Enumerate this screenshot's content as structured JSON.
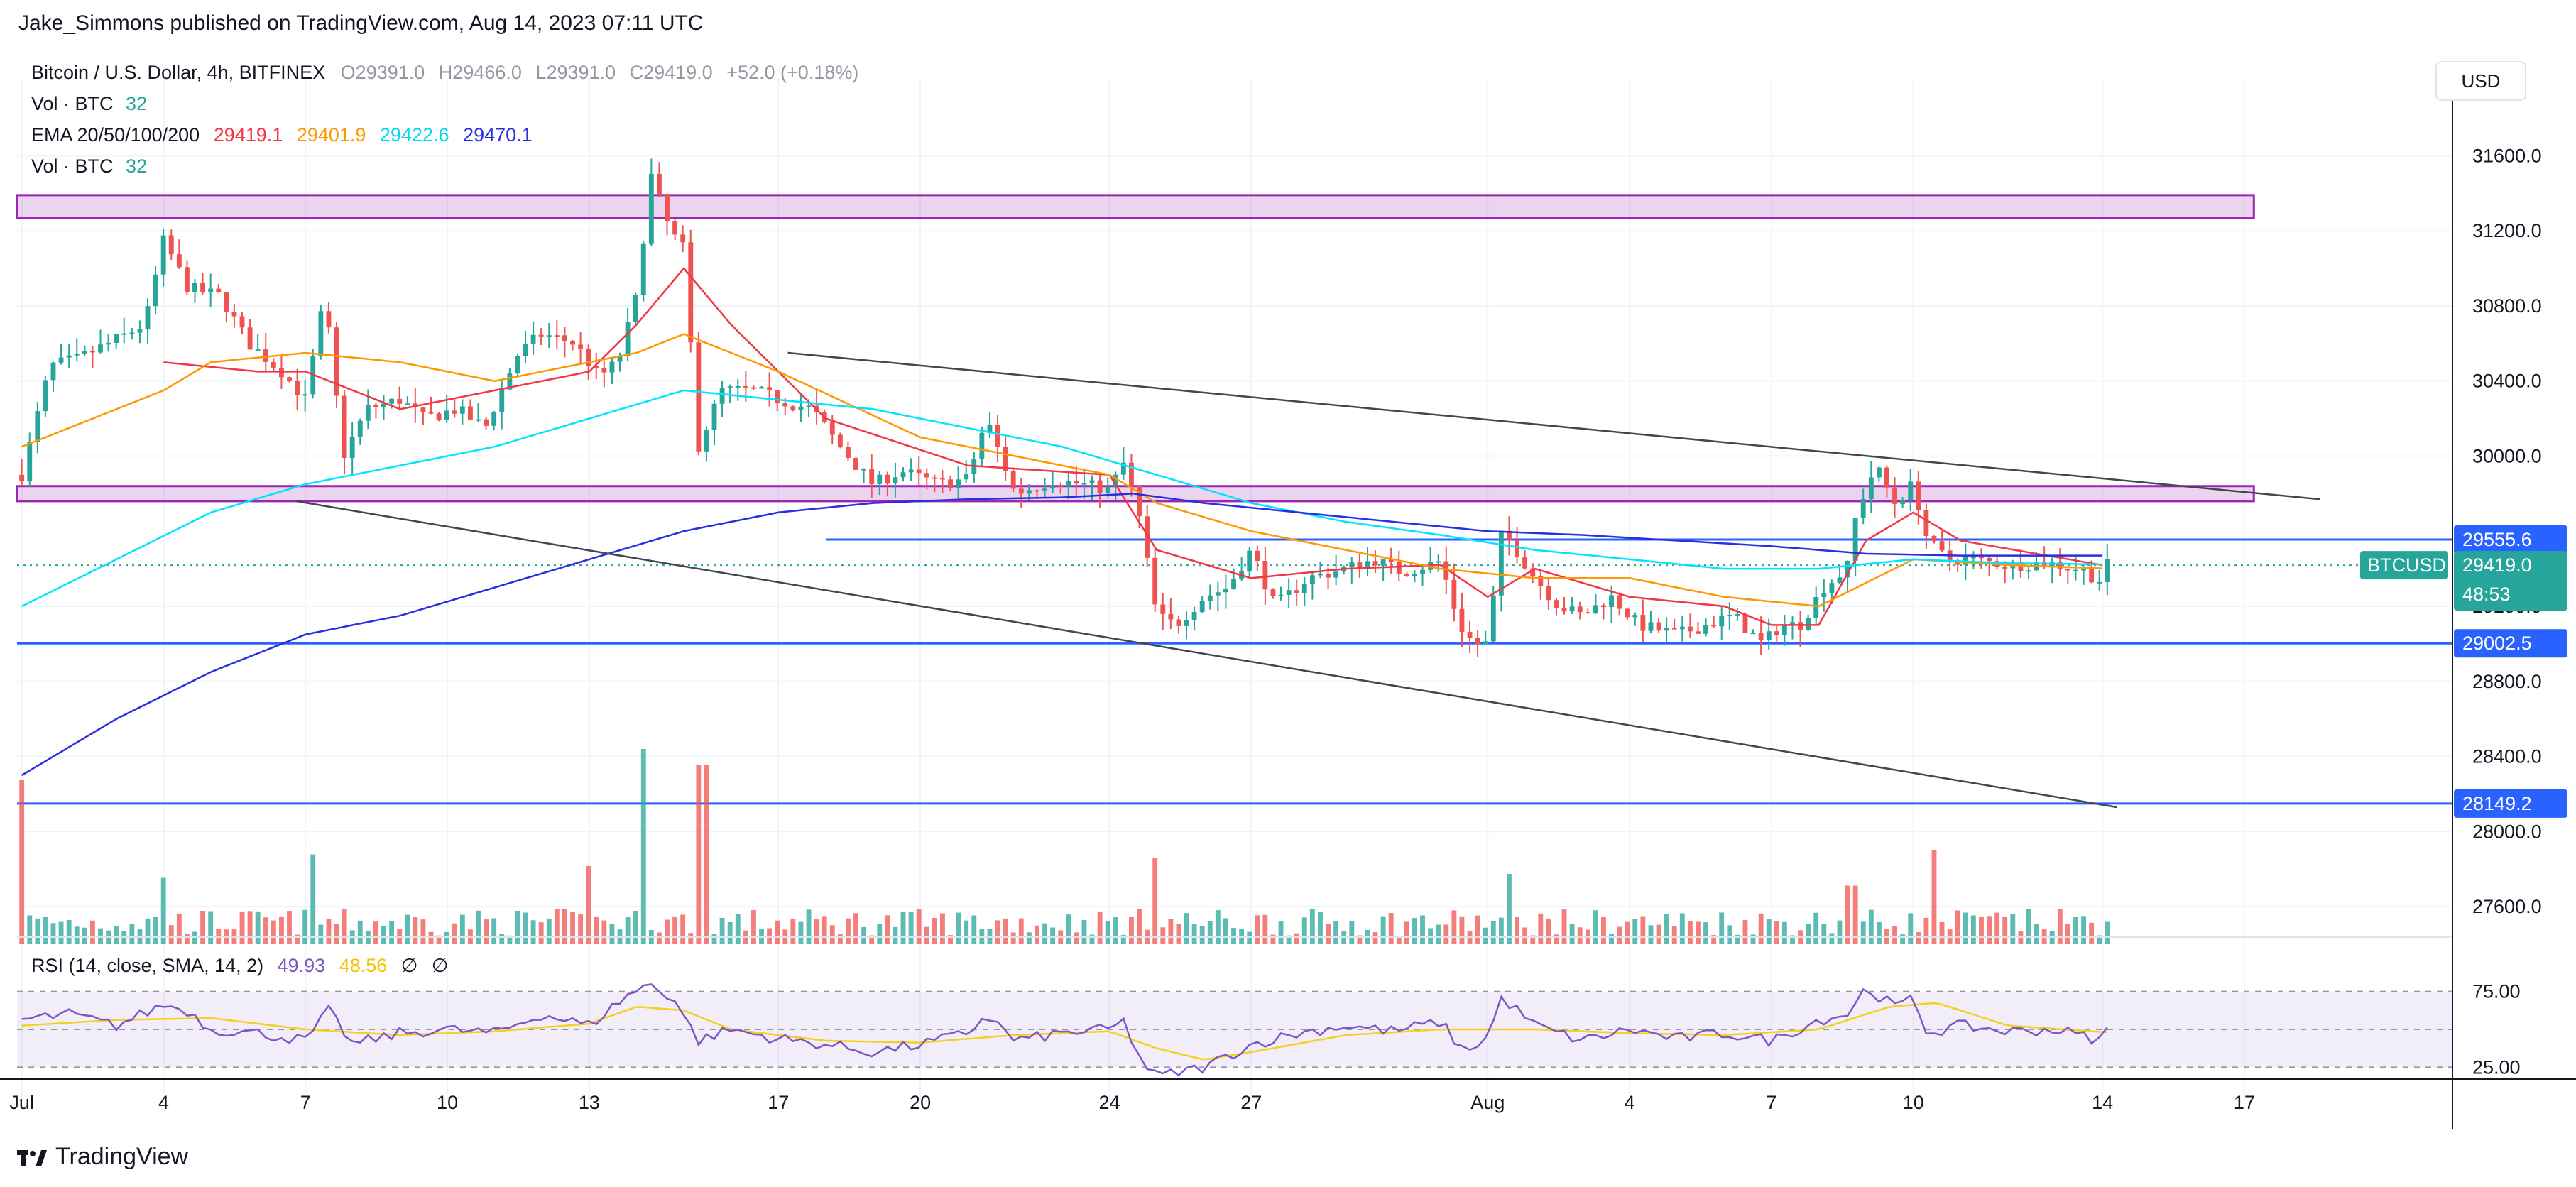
{
  "publisher": "Jake_Simmons published on TradingView.com, Aug 14, 2023 07:11 UTC",
  "brand": "TradingView",
  "currency_button": "USD",
  "legend": {
    "symbol": "Bitcoin / U.S. Dollar, 4h, BITFINEX",
    "o_label": "O",
    "o_value": "29391.0",
    "h_label": "H",
    "h_value": "29466.0",
    "l_label": "L",
    "l_value": "29391.0",
    "c_label": "C",
    "c_value": "29419.0",
    "change": "+52.0 (+0.18%)",
    "vol1_label": "Vol · BTC",
    "vol1_value": "32",
    "ema_label": "EMA 20/50/100/200",
    "ema20": "29419.1",
    "ema50": "29401.9",
    "ema100": "29422.6",
    "ema200": "29470.1",
    "vol2_label": "Vol · BTC",
    "vol2_value": "32"
  },
  "rsi_legend": {
    "label": "RSI (14, close, SMA, 14, 2)",
    "rsi": "49.93",
    "sma": "48.56",
    "sym1": "∅",
    "sym2": "∅"
  },
  "colors": {
    "up": "#26a69a",
    "down": "#ef5350",
    "ema20": "#f23645",
    "ema50": "#ff9800",
    "ema100": "#00e5ff",
    "ema200": "#2a2ee0",
    "support": "#2962ff",
    "zone": "#9c27b0",
    "rsi": "#7e57c2",
    "rsi_sma": "#f5d01e",
    "trend": "#434651"
  },
  "chart_data": {
    "type": "candlestick",
    "symbol": "BTCUSD",
    "timeframe": "4h",
    "price_axis": {
      "ylim": [
        27400,
        31900
      ],
      "ticks": [
        27600,
        28000,
        28400,
        28800,
        29200,
        30000,
        30400,
        30800,
        31200,
        31600
      ]
    },
    "price_tick_labels": [
      "27600.0",
      "28000.0",
      "28400.0",
      "28800.0",
      "29200.0",
      "30000.0",
      "30400.0",
      "30800.0",
      "31200.0",
      "31600.0"
    ],
    "time_axis": {
      "ticks": [
        {
          "label": "Jul",
          "day": 0
        },
        {
          "label": "4",
          "day": 3
        },
        {
          "label": "7",
          "day": 6
        },
        {
          "label": "10",
          "day": 9
        },
        {
          "label": "13",
          "day": 12
        },
        {
          "label": "17",
          "day": 16
        },
        {
          "label": "20",
          "day": 19
        },
        {
          "label": "24",
          "day": 23
        },
        {
          "label": "27",
          "day": 26
        },
        {
          "label": "Aug",
          "day": 31
        },
        {
          "label": "4",
          "day": 34
        },
        {
          "label": "7",
          "day": 37
        },
        {
          "label": "10",
          "day": 40
        },
        {
          "label": "14",
          "day": 44
        },
        {
          "label": "17",
          "day": 47
        }
      ],
      "xlim_days": [
        -0.1,
        51.4
      ]
    },
    "price_tags": [
      {
        "label": "29555.6",
        "price": 29555.6,
        "color": "#2962ff"
      },
      {
        "label": "29419.0",
        "sub": "48:53",
        "price": 29419.0,
        "color": "#26a69a",
        "symbol": "BTCUSD"
      },
      {
        "label": "29002.5",
        "price": 29002.5,
        "color": "#2962ff"
      },
      {
        "label": "28149.2",
        "price": 28149.2,
        "color": "#2962ff"
      }
    ],
    "horizontal_lines": [
      {
        "price": 29555.6,
        "from_day": 17,
        "to_day": 51.4
      },
      {
        "price": 29002.5,
        "from_day": -0.1,
        "to_day": 51.4
      },
      {
        "price": 28149.2,
        "from_day": -0.1,
        "to_day": 51.4
      }
    ],
    "zones": [
      {
        "top": 31390,
        "bottom": 31270,
        "from_day": -0.1,
        "to_day": 47.2
      },
      {
        "top": 29840,
        "bottom": 29760,
        "from_day": -0.1,
        "to_day": 47.2
      }
    ],
    "trendlines": [
      {
        "from": [
          16.2,
          30550
        ],
        "to": [
          48.6,
          29770
        ]
      },
      {
        "from": [
          5.8,
          29760
        ],
        "to": [
          44.3,
          28130
        ]
      }
    ],
    "close_anchors": [
      [
        0,
        29900
      ],
      [
        0.6,
        30480
      ],
      [
        1.2,
        30520
      ],
      [
        2,
        30620
      ],
      [
        2.6,
        30700
      ],
      [
        3,
        31150
      ],
      [
        3.5,
        30900
      ],
      [
        4.2,
        30850
      ],
      [
        4.8,
        30600
      ],
      [
        5.5,
        30450
      ],
      [
        6,
        30300
      ],
      [
        6.4,
        30850
      ],
      [
        6.8,
        30000
      ],
      [
        7.3,
        30250
      ],
      [
        8,
        30300
      ],
      [
        8.5,
        30200
      ],
      [
        9.2,
        30250
      ],
      [
        9.8,
        30150
      ],
      [
        10.5,
        30550
      ],
      [
        11,
        30650
      ],
      [
        11.7,
        30600
      ],
      [
        12.2,
        30420
      ],
      [
        12.6,
        30500
      ],
      [
        13,
        30850
      ],
      [
        13.3,
        31500
      ],
      [
        13.7,
        31200
      ],
      [
        14,
        31100
      ],
      [
        14.3,
        30050
      ],
      [
        14.8,
        30350
      ],
      [
        15.5,
        30350
      ],
      [
        16,
        30300
      ],
      [
        16.7,
        30250
      ],
      [
        17.3,
        30050
      ],
      [
        18,
        29850
      ],
      [
        18.6,
        29920
      ],
      [
        19.4,
        29850
      ],
      [
        20,
        29880
      ],
      [
        20.4,
        30200
      ],
      [
        21,
        29800
      ],
      [
        21.8,
        29870
      ],
      [
        22.4,
        29850
      ],
      [
        23,
        29820
      ],
      [
        23.3,
        29960
      ],
      [
        23.6,
        29710
      ],
      [
        24,
        29150
      ],
      [
        24.4,
        29100
      ],
      [
        25,
        29250
      ],
      [
        25.5,
        29300
      ],
      [
        26,
        29500
      ],
      [
        26.5,
        29200
      ],
      [
        27.2,
        29350
      ],
      [
        28,
        29400
      ],
      [
        28.6,
        29450
      ],
      [
        29.2,
        29380
      ],
      [
        30,
        29440
      ],
      [
        30.4,
        29100
      ],
      [
        30.7,
        29000
      ],
      [
        31,
        29000
      ],
      [
        31.3,
        29600
      ],
      [
        31.6,
        29500
      ],
      [
        32,
        29350
      ],
      [
        32.5,
        29200
      ],
      [
        33,
        29150
      ],
      [
        33.6,
        29250
      ],
      [
        34.2,
        29100
      ],
      [
        35,
        29050
      ],
      [
        35.6,
        29100
      ],
      [
        36.2,
        29150
      ],
      [
        36.8,
        29000
      ],
      [
        37.2,
        29100
      ],
      [
        37.6,
        29100
      ],
      [
        38.1,
        29300
      ],
      [
        38.6,
        29400
      ],
      [
        38.8,
        29700
      ],
      [
        39.2,
        29950
      ],
      [
        39.6,
        29750
      ],
      [
        40,
        29850
      ],
      [
        40.3,
        29550
      ],
      [
        40.7,
        29450
      ],
      [
        41.2,
        29450
      ],
      [
        42,
        29420
      ],
      [
        42.8,
        29430
      ],
      [
        43.5,
        29400
      ],
      [
        44,
        29330
      ],
      [
        44.1,
        29419
      ]
    ],
    "ema_anchors": {
      "ema20": [
        [
          3,
          30500
        ],
        [
          5,
          30450
        ],
        [
          6,
          30450
        ],
        [
          8,
          30250
        ],
        [
          10,
          30350
        ],
        [
          12,
          30450
        ],
        [
          13,
          30700
        ],
        [
          14,
          31000
        ],
        [
          15,
          30700
        ],
        [
          17,
          30200
        ],
        [
          20,
          29950
        ],
        [
          23,
          29900
        ],
        [
          24,
          29500
        ],
        [
          26,
          29350
        ],
        [
          28,
          29400
        ],
        [
          30,
          29420
        ],
        [
          31,
          29250
        ],
        [
          32,
          29400
        ],
        [
          34,
          29250
        ],
        [
          36,
          29200
        ],
        [
          37,
          29100
        ],
        [
          38,
          29100
        ],
        [
          39,
          29550
        ],
        [
          40,
          29700
        ],
        [
          41,
          29550
        ],
        [
          44,
          29419
        ]
      ],
      "ema50": [
        [
          0,
          30050
        ],
        [
          3,
          30350
        ],
        [
          4,
          30500
        ],
        [
          6,
          30550
        ],
        [
          8,
          30500
        ],
        [
          10,
          30400
        ],
        [
          12,
          30500
        ],
        [
          13,
          30550
        ],
        [
          14,
          30650
        ],
        [
          16,
          30450
        ],
        [
          19,
          30100
        ],
        [
          22,
          29950
        ],
        [
          23,
          29900
        ],
        [
          24,
          29750
        ],
        [
          26,
          29600
        ],
        [
          28,
          29500
        ],
        [
          30,
          29400
        ],
        [
          32,
          29350
        ],
        [
          34,
          29350
        ],
        [
          36,
          29250
        ],
        [
          38,
          29200
        ],
        [
          40,
          29450
        ],
        [
          42,
          29420
        ],
        [
          44,
          29402
        ]
      ],
      "ema100": [
        [
          0,
          29200
        ],
        [
          2,
          29450
        ],
        [
          4,
          29700
        ],
        [
          6,
          29850
        ],
        [
          8,
          29950
        ],
        [
          10,
          30050
        ],
        [
          12,
          30200
        ],
        [
          14,
          30350
        ],
        [
          16,
          30300
        ],
        [
          18,
          30250
        ],
        [
          20,
          30150
        ],
        [
          22,
          30050
        ],
        [
          24,
          29900
        ],
        [
          26,
          29750
        ],
        [
          28,
          29650
        ],
        [
          30,
          29580
        ],
        [
          32,
          29500
        ],
        [
          34,
          29450
        ],
        [
          36,
          29400
        ],
        [
          38,
          29400
        ],
        [
          40,
          29450
        ],
        [
          42,
          29430
        ],
        [
          44,
          29423
        ]
      ],
      "ema200": [
        [
          0,
          28300
        ],
        [
          2,
          28600
        ],
        [
          4,
          28850
        ],
        [
          6,
          29050
        ],
        [
          8,
          29150
        ],
        [
          10,
          29300
        ],
        [
          12,
          29450
        ],
        [
          14,
          29600
        ],
        [
          16,
          29700
        ],
        [
          18,
          29750
        ],
        [
          20,
          29770
        ],
        [
          22,
          29780
        ],
        [
          23.5,
          29800
        ],
        [
          25,
          29750
        ],
        [
          27,
          29700
        ],
        [
          29,
          29650
        ],
        [
          31,
          29600
        ],
        [
          33,
          29580
        ],
        [
          35,
          29550
        ],
        [
          37,
          29520
        ],
        [
          39,
          29480
        ],
        [
          41,
          29470
        ],
        [
          44,
          29470
        ]
      ]
    },
    "rsi": {
      "ylim": [
        20,
        80
      ],
      "levels": [
        {
          "value": 70,
          "label": "75.00"
        },
        {
          "value": 50
        },
        {
          "value": 30,
          "label": "25.00"
        }
      ],
      "anchors": [
        [
          0,
          55
        ],
        [
          1,
          58
        ],
        [
          2,
          52
        ],
        [
          3,
          63
        ],
        [
          3.5,
          60
        ],
        [
          4,
          50
        ],
        [
          5,
          48
        ],
        [
          6,
          44
        ],
        [
          6.5,
          60
        ],
        [
          7,
          42
        ],
        [
          8,
          48
        ],
        [
          9,
          50
        ],
        [
          10,
          48
        ],
        [
          11,
          58
        ],
        [
          12,
          52
        ],
        [
          12.8,
          68
        ],
        [
          13.3,
          74
        ],
        [
          13.8,
          66
        ],
        [
          14.3,
          44
        ],
        [
          15,
          50
        ],
        [
          16,
          45
        ],
        [
          17,
          42
        ],
        [
          18,
          38
        ],
        [
          19,
          42
        ],
        [
          20,
          48
        ],
        [
          20.4,
          58
        ],
        [
          21,
          44
        ],
        [
          22,
          48
        ],
        [
          23,
          50
        ],
        [
          23.3,
          54
        ],
        [
          23.7,
          32
        ],
        [
          24,
          25
        ],
        [
          25,
          30
        ],
        [
          26,
          42
        ],
        [
          27,
          48
        ],
        [
          28,
          52
        ],
        [
          29,
          49
        ],
        [
          30,
          54
        ],
        [
          30.5,
          38
        ],
        [
          31,
          46
        ],
        [
          31.3,
          67
        ],
        [
          32,
          52
        ],
        [
          33,
          44
        ],
        [
          34,
          50
        ],
        [
          35,
          45
        ],
        [
          36,
          48
        ],
        [
          37,
          44
        ],
        [
          38,
          55
        ],
        [
          38.6,
          58
        ],
        [
          39,
          72
        ],
        [
          39.6,
          62
        ],
        [
          40,
          66
        ],
        [
          40.3,
          48
        ],
        [
          41,
          52
        ],
        [
          42,
          49
        ],
        [
          43,
          50
        ],
        [
          44,
          44
        ],
        [
          44.1,
          50
        ]
      ],
      "sma_anchors": [
        [
          0,
          52
        ],
        [
          2,
          55
        ],
        [
          4,
          56
        ],
        [
          6,
          50
        ],
        [
          8,
          47
        ],
        [
          10,
          49
        ],
        [
          12,
          53
        ],
        [
          13,
          62
        ],
        [
          14,
          60
        ],
        [
          15,
          50
        ],
        [
          17,
          44
        ],
        [
          19,
          43
        ],
        [
          21,
          47
        ],
        [
          23,
          49
        ],
        [
          24,
          40
        ],
        [
          25,
          34
        ],
        [
          26,
          38
        ],
        [
          28,
          47
        ],
        [
          30,
          50
        ],
        [
          32,
          50
        ],
        [
          34,
          48
        ],
        [
          36,
          47
        ],
        [
          38,
          50
        ],
        [
          39.5,
          62
        ],
        [
          40.5,
          64
        ],
        [
          42,
          52
        ],
        [
          44,
          48.6
        ]
      ]
    },
    "volume": {
      "baseline_price": 27520,
      "spikes": [
        {
          "day": 0,
          "value": 420,
          "dir": "down"
        },
        {
          "day": 6.1,
          "value": 230,
          "dir": "up"
        },
        {
          "day": 13.2,
          "value": 500,
          "dir": "up"
        },
        {
          "day": 14.4,
          "value": 460,
          "dir": "down"
        },
        {
          "day": 24,
          "value": 220,
          "dir": "down"
        },
        {
          "day": 40.5,
          "value": 240,
          "dir": "down"
        },
        {
          "day": 31.4,
          "value": 180,
          "dir": "up"
        },
        {
          "day": 12,
          "value": 200,
          "dir": "down"
        },
        {
          "day": 3,
          "value": 170,
          "dir": "up"
        },
        {
          "day": 38.7,
          "value": 150,
          "dir": "down"
        }
      ]
    }
  }
}
